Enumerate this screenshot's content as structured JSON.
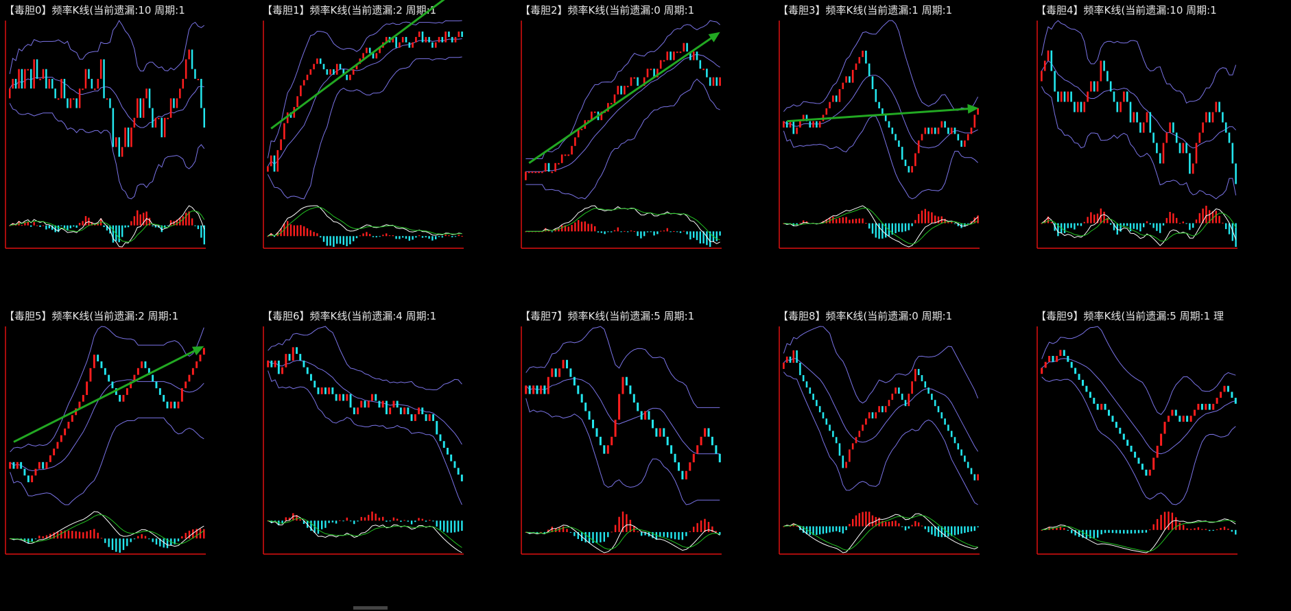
{
  "colors": {
    "up": "#ff1e1e",
    "down": "#23e6ee",
    "band": "#7b74e8",
    "dif": "#ffffff",
    "dea": "#22c322",
    "trend": "#22a822",
    "frame": "#e01010"
  },
  "panels": [
    {
      "title": "【毒胆0】频率K线(当前遗漏:10 周期:1",
      "chart_data": {
        "type": "candlestick",
        "close": [
          3,
          4,
          3,
          5,
          3,
          5,
          5,
          3,
          6,
          4,
          4,
          5,
          3,
          4,
          3,
          2,
          2,
          4,
          2,
          1,
          2,
          2,
          1,
          3,
          3,
          5,
          4,
          3,
          3,
          4,
          6,
          2,
          2,
          1,
          -3,
          -2,
          -4,
          -3,
          -1,
          -3,
          -1,
          0,
          2,
          0,
          2,
          3,
          1,
          -1,
          0,
          0,
          -2,
          0,
          0,
          2,
          1,
          2,
          3,
          4,
          6,
          7,
          5,
          4,
          4,
          1,
          -1
        ]
      }
    },
    {
      "title": "【毒胆1】频率K线(当前遗漏:2 周期:1",
      "chart_data": {
        "type": "candlestick",
        "close": [
          -6,
          -4,
          -7,
          -3,
          -1,
          2,
          4,
          3,
          5,
          7,
          9,
          10,
          11,
          12,
          13,
          14,
          13,
          12,
          11,
          12,
          11,
          13,
          12,
          11,
          10,
          11,
          12,
          13,
          14,
          15,
          16,
          15,
          14,
          15,
          16,
          17,
          18,
          17,
          18,
          16,
          17,
          18,
          17,
          16,
          17,
          18,
          19,
          17,
          18,
          17,
          16,
          17,
          18,
          17,
          19,
          18,
          17,
          18,
          19,
          18
        ],
        "trend": [
          1,
          27
        ]
      }
    },
    {
      "title": "【毒胆2】频率K线(当前遗漏:0 周期:1",
      "chart_data": {
        "type": "candlestick",
        "close": [
          -2,
          -2,
          -2,
          -2,
          -2,
          -2,
          -1,
          -2,
          -2,
          -1,
          -1,
          0,
          0,
          0,
          1,
          2,
          3,
          3,
          4,
          4,
          5,
          5,
          4,
          5,
          5,
          6,
          6,
          7,
          8,
          7,
          8,
          8,
          9,
          9,
          8,
          8,
          9,
          10,
          10,
          9,
          10,
          11,
          11,
          12,
          11,
          12,
          12,
          12,
          13,
          12,
          11,
          12,
          11,
          10,
          10,
          9,
          8,
          9,
          8,
          9
        ],
        "trend": [
          -1,
          14
        ]
      }
    },
    {
      "title": "【毒胆3】频率K线(当前遗漏:1 周期:1",
      "chart_data": {
        "type": "candlestick",
        "close": [
          3,
          2,
          3,
          1,
          2,
          3,
          4,
          3,
          2,
          3,
          2,
          3,
          4,
          5,
          6,
          7,
          6,
          8,
          9,
          10,
          9,
          11,
          12,
          13,
          14,
          12,
          10,
          8,
          6,
          5,
          4,
          3,
          2,
          1,
          0,
          -1,
          -3,
          -4,
          -5,
          -4,
          -2,
          0,
          1,
          2,
          1,
          2,
          1,
          2,
          3,
          2,
          1,
          2,
          1,
          0,
          -1,
          0,
          1,
          2,
          4,
          5
        ],
        "trend": [
          3,
          5
        ]
      }
    },
    {
      "title": "【毒胆4】频率K线(当前遗漏:10 周期:1",
      "chart_data": {
        "type": "candlestick",
        "close": [
          5,
          6,
          7,
          5,
          3,
          2,
          3,
          2,
          3,
          2,
          1,
          2,
          1,
          2,
          3,
          4,
          3,
          4,
          6,
          5,
          4,
          3,
          2,
          1,
          2,
          3,
          2,
          0,
          1,
          0,
          -1,
          0,
          1,
          -1,
          -2,
          -3,
          -4,
          -2,
          -1,
          0,
          -1,
          -2,
          -3,
          -2,
          -3,
          -5,
          -4,
          -2,
          -1,
          0,
          1,
          0,
          1,
          2,
          1,
          0,
          -1,
          -2,
          -4,
          -6
        ]
      }
    },
    {
      "title": "【毒胆5】频率K线(当前遗漏:2 周期:1",
      "chart_data": {
        "type": "candlestick",
        "close": [
          -5,
          -6,
          -5,
          -6,
          -7,
          -8,
          -7,
          -6,
          -5,
          -6,
          -5,
          -4,
          -3,
          -2,
          -1,
          0,
          1,
          2,
          3,
          4,
          5,
          7,
          9,
          11,
          10,
          9,
          8,
          7,
          6,
          5,
          4,
          5,
          6,
          7,
          8,
          9,
          10,
          9,
          8,
          7,
          6,
          5,
          4,
          3,
          4,
          3,
          4,
          6,
          7,
          8,
          9,
          10,
          11,
          12
        ],
        "trend": [
          -2,
          12
        ]
      }
    },
    {
      "title": "【毒胆6】频率K线(当前遗漏:4 周期:1",
      "chart_data": {
        "type": "candlestick",
        "close": [
          3,
          2,
          3,
          1,
          2,
          4,
          3,
          5,
          4,
          3,
          2,
          1,
          0,
          -1,
          -2,
          -1,
          -2,
          -1,
          -2,
          -3,
          -2,
          -3,
          -2,
          -4,
          -5,
          -4,
          -3,
          -4,
          -3,
          -2,
          -3,
          -4,
          -3,
          -5,
          -4,
          -3,
          -4,
          -5,
          -4,
          -5,
          -6,
          -5,
          -4,
          -5,
          -6,
          -5,
          -6,
          -8,
          -9,
          -10,
          -11,
          -12,
          -13,
          -14,
          -15
        ]
      }
    },
    {
      "title": "【毒胆7】频率K线(当前遗漏:5 周期:1",
      "chart_data": {
        "type": "candlestick",
        "close": [
          1,
          0,
          1,
          0,
          1,
          0,
          2,
          3,
          2,
          3,
          4,
          3,
          2,
          1,
          0,
          -1,
          -2,
          -3,
          -4,
          -5,
          -6,
          -7,
          -6,
          -5,
          -3,
          0,
          2,
          1,
          0,
          -1,
          -2,
          -3,
          -2,
          -3,
          -4,
          -5,
          -4,
          -5,
          -6,
          -7,
          -8,
          -9,
          -10,
          -9,
          -8,
          -7,
          -6,
          -5,
          -4,
          -5,
          -6,
          -7,
          -8
        ]
      }
    },
    {
      "title": "【毒胆8】频率K线(当前遗漏:0 周期:1",
      "chart_data": {
        "type": "candlestick",
        "close": [
          10,
          11,
          10,
          12,
          10,
          8,
          7,
          6,
          5,
          4,
          3,
          2,
          1,
          0,
          -1,
          -2,
          -3,
          -5,
          -7,
          -6,
          -4,
          -3,
          -2,
          -1,
          0,
          1,
          2,
          1,
          2,
          3,
          2,
          3,
          4,
          5,
          6,
          5,
          4,
          3,
          5,
          7,
          9,
          8,
          7,
          6,
          5,
          4,
          3,
          2,
          1,
          0,
          -1,
          -2,
          -3,
          -4,
          -5,
          -6,
          -7,
          -8,
          -9,
          -8
        ]
      }
    },
    {
      "title": "【毒胆9】频率K线(当前遗漏:5 周期:1 理",
      "chart_data": {
        "type": "candlestick",
        "close": [
          8,
          9,
          10,
          9,
          10,
          11,
          10,
          9,
          8,
          7,
          6,
          5,
          4,
          3,
          2,
          1,
          2,
          1,
          0,
          -1,
          -2,
          -3,
          -4,
          -5,
          -6,
          -7,
          -8,
          -9,
          -10,
          -9,
          -7,
          -5,
          -3,
          -1,
          0,
          1,
          0,
          -1,
          0,
          -1,
          0,
          1,
          2,
          1,
          2,
          1,
          2,
          3,
          4,
          5,
          4,
          3,
          2
        ]
      }
    }
  ]
}
